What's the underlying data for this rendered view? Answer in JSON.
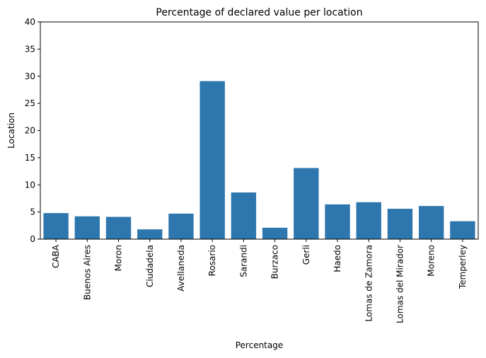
{
  "chart_data": {
    "type": "bar",
    "title": "Percentage of declared value per location",
    "xlabel": "Percentage",
    "ylabel": "Location",
    "categories": [
      "CABA",
      "Buenos Aires",
      "Moron",
      "Ciudadela",
      "Avellaneda",
      "Rosario",
      "Sarandi",
      "Burzaco",
      "Gerli",
      "Haedo",
      "Lomas de Zamora",
      "Lomas del Mirador",
      "Moreno",
      "Temperley"
    ],
    "values": [
      4.8,
      4.2,
      4.1,
      1.8,
      4.7,
      29.1,
      8.6,
      2.1,
      13.1,
      6.4,
      6.8,
      5.6,
      6.1,
      3.3
    ],
    "ylim": [
      0,
      40
    ],
    "yticks": [
      0,
      5,
      10,
      15,
      20,
      25,
      30,
      35,
      40
    ],
    "bar_color": "#2e77ae",
    "grid": false,
    "legend": "none"
  }
}
